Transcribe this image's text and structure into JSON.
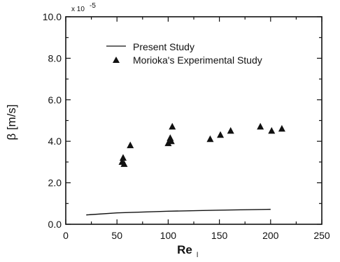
{
  "chart_data": {
    "type": "scatter",
    "xlabel_main": "Re",
    "xlabel_sub": "l",
    "ylabel": "β [m/s]",
    "y_multiplier": "x 10",
    "y_multiplier_exp": "-5",
    "xlim": [
      0,
      250
    ],
    "ylim": [
      0,
      10
    ],
    "x_ticks": [
      "0",
      "50",
      "100",
      "150",
      "200",
      "250"
    ],
    "y_ticks": [
      "0.0",
      "2.0",
      "4.0",
      "6.0",
      "8.0",
      "10.0"
    ],
    "legend_placement": "top-center",
    "series": [
      {
        "name": "Present Study",
        "style": "line",
        "x": [
          20,
          50,
          100,
          150,
          200
        ],
        "y": [
          0.45,
          0.55,
          0.63,
          0.68,
          0.72
        ]
      },
      {
        "name": "Morioka's Experimental Study",
        "style": "triangle",
        "x": [
          55,
          56,
          57,
          63,
          100,
          102,
          103,
          104,
          141,
          151,
          161,
          190,
          201,
          211
        ],
        "y": [
          3.0,
          3.2,
          2.9,
          3.8,
          3.9,
          4.15,
          4.0,
          4.7,
          4.1,
          4.3,
          4.5,
          4.7,
          4.5,
          4.6
        ]
      }
    ]
  }
}
